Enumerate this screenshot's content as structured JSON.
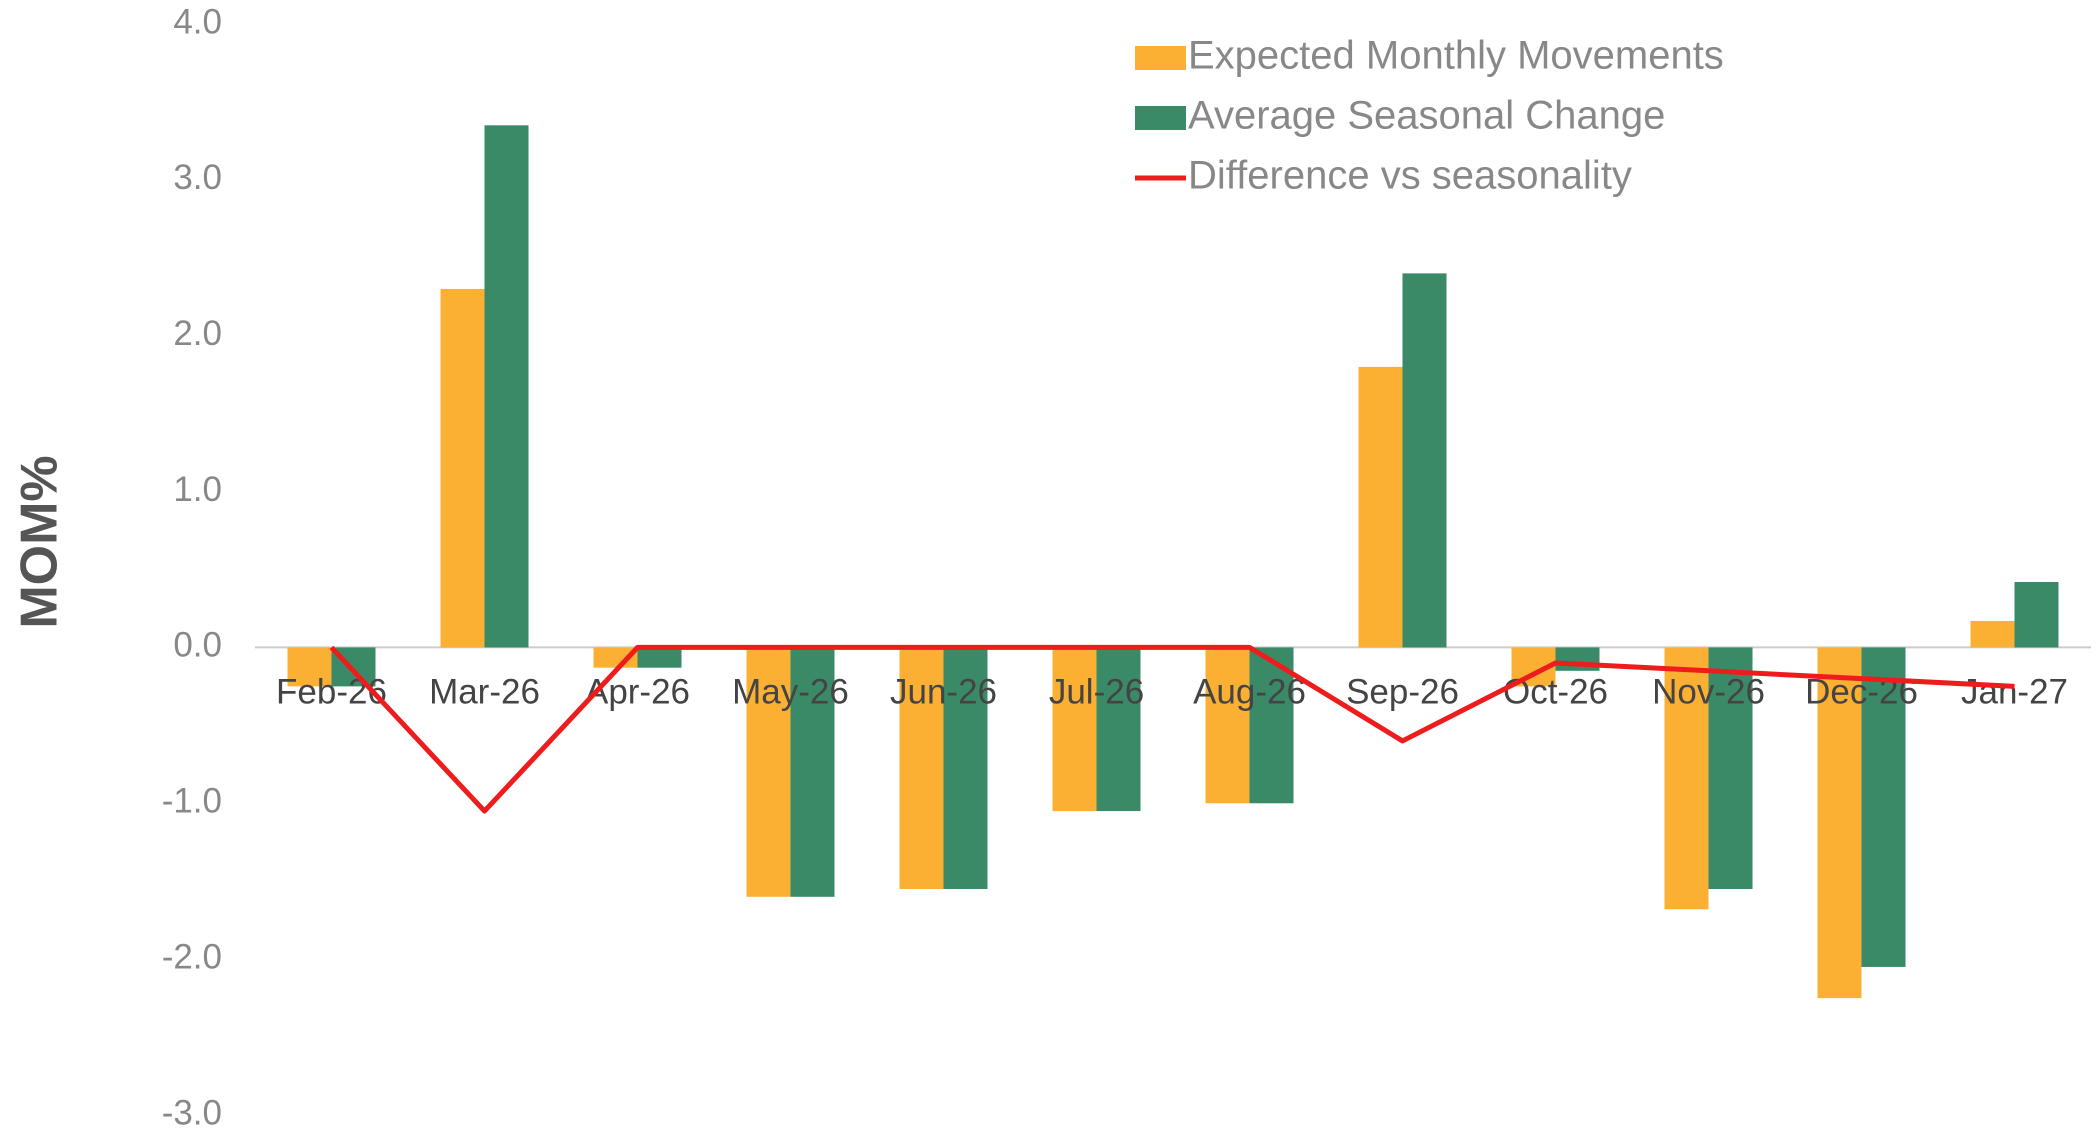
{
  "chart_data": {
    "type": "bar",
    "y_label": "MOM%",
    "categories": [
      "Feb-26",
      "Mar-26",
      "Apr-26",
      "May-26",
      "Jun-26",
      "Jul-26",
      "Aug-26",
      "Sep-26",
      "Oct-26",
      "Nov-26",
      "Dec-26",
      "Jan-27"
    ],
    "series": [
      {
        "name": "Expected Monthly Movements",
        "color": "#fbb034",
        "type": "bar",
        "values": [
          -0.25,
          2.3,
          -0.13,
          -1.6,
          -1.55,
          -1.05,
          -1.0,
          1.8,
          -0.25,
          -1.68,
          -2.25,
          0.17
        ]
      },
      {
        "name": "Average Seasonal Change",
        "color": "#3a8a68",
        "type": "bar",
        "values": [
          -0.25,
          3.35,
          -0.13,
          -1.6,
          -1.55,
          -1.05,
          -1.0,
          2.4,
          -0.15,
          -1.55,
          -2.05,
          0.42
        ]
      },
      {
        "name": "Difference vs seasonality",
        "color": "#ee1c1c",
        "type": "line",
        "values": [
          0,
          -1.05,
          0,
          0,
          0,
          0,
          0,
          -0.6,
          -0.1,
          -0.15,
          -0.2,
          -0.25
        ]
      }
    ],
    "ylim": [
      -3,
      4
    ],
    "yticks": [
      {
        "value": -3,
        "label": "-3.0"
      },
      {
        "value": -2,
        "label": "-2.0"
      },
      {
        "value": -1,
        "label": "-1.0"
      },
      {
        "value": 0,
        "label": "0.0"
      },
      {
        "value": 1,
        "label": "1.0"
      },
      {
        "value": 2,
        "label": "2.0"
      },
      {
        "value": 3,
        "label": "3.0"
      },
      {
        "value": 4,
        "label": "4.0"
      }
    ],
    "grid": false,
    "legend": "top-right"
  }
}
